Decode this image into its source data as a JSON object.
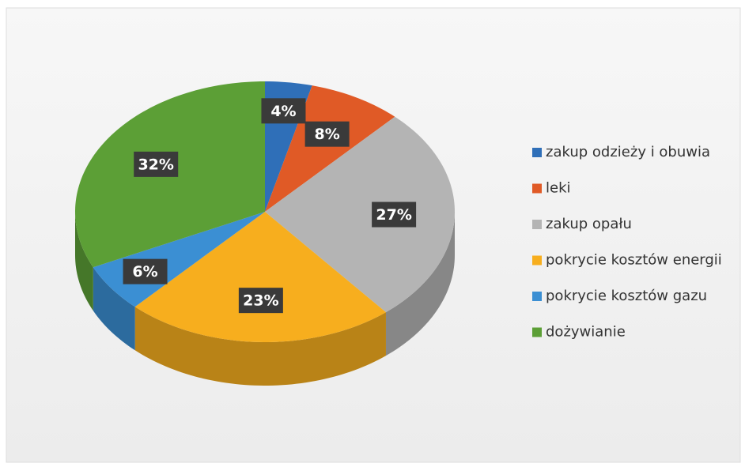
{
  "chart_data": {
    "type": "pie",
    "categories": [
      "zakup odzieży i obuwia",
      "leki",
      "zakup opału",
      "pokrycie kosztów energii",
      "pokrycie kosztów gazu",
      "dożywianie"
    ],
    "values": [
      4,
      8,
      27,
      23,
      6,
      32
    ],
    "value_labels": [
      "4%",
      "8%",
      "27%",
      "23%",
      "6%",
      "32%"
    ],
    "colors": [
      "#2f6fb8",
      "#e05a26",
      "#b4b4b4",
      "#f7ae1e",
      "#3b8fd3",
      "#5c9f36"
    ],
    "legend": "right"
  }
}
